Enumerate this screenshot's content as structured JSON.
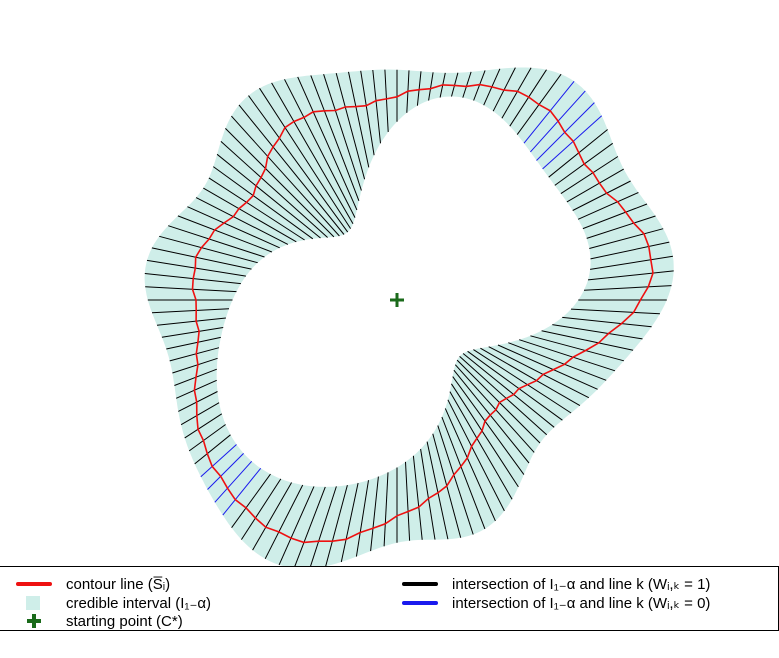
{
  "figure": {
    "colors": {
      "contour": "#ee1111",
      "interval_fill": "#cfeee9",
      "segment_in": "#000000",
      "segment_out": "#1a1aee",
      "start_point": "#1a6a1a"
    },
    "num_lines": 120,
    "blue_line_indices": [
      14,
      15,
      16,
      17,
      74,
      75,
      76,
      77
    ]
  },
  "legend": {
    "contour_line": "contour line (S̅ᵢ)",
    "credible_interval": "credible interval (I₁₋α)",
    "starting_point": "starting point (C*)",
    "intersection_w1": "intersection of I₁₋α and line k (Wᵢ,ₖ = 1)",
    "intersection_w0": "intersection of I₁₋α and line k (Wᵢ,ₖ = 0)"
  }
}
